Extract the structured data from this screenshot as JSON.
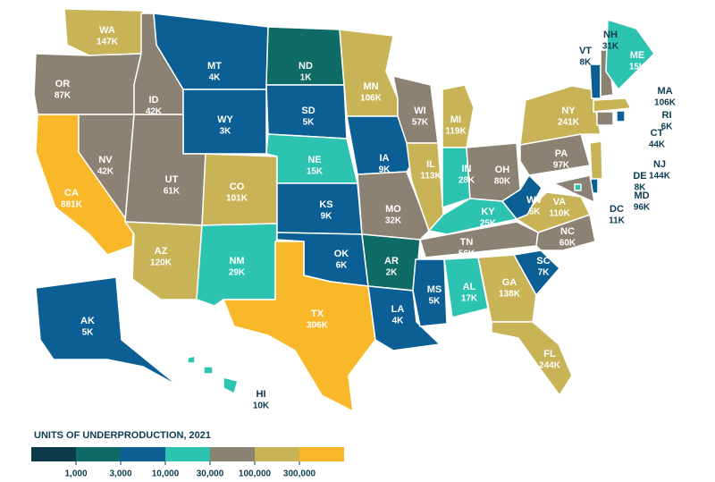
{
  "chart_data": {
    "type": "choropleth",
    "title": "UNITS OF UNDERPRODUCTION, 2021",
    "thresholds": [
      {
        "value": 1000,
        "label": "1,000"
      },
      {
        "value": 3000,
        "label": "3,000"
      },
      {
        "value": 10000,
        "label": "10,000"
      },
      {
        "value": 30000,
        "label": "30,000"
      },
      {
        "value": 100000,
        "label": "100,000"
      },
      {
        "value": 300000,
        "label": "300,000"
      }
    ],
    "colors": [
      "#0b3a4a",
      "#0e6b66",
      "#0b5f95",
      "#2cc4b0",
      "#8c8274",
      "#c8b457",
      "#f8b82a"
    ],
    "states": [
      {
        "name": "WA",
        "value": 147000,
        "value_label": "147K"
      },
      {
        "name": "OR",
        "value": 87000,
        "value_label": "87K"
      },
      {
        "name": "CA",
        "value": 881000,
        "value_label": "881K"
      },
      {
        "name": "NV",
        "value": 42000,
        "value_label": "42K"
      },
      {
        "name": "ID",
        "value": 42000,
        "value_label": "42K"
      },
      {
        "name": "MT",
        "value": 4000,
        "value_label": "4K"
      },
      {
        "name": "WY",
        "value": 3000,
        "value_label": "3K"
      },
      {
        "name": "UT",
        "value": 61000,
        "value_label": "61K"
      },
      {
        "name": "AZ",
        "value": 120000,
        "value_label": "120K"
      },
      {
        "name": "CO",
        "value": 101000,
        "value_label": "101K"
      },
      {
        "name": "NM",
        "value": 29000,
        "value_label": "29K"
      },
      {
        "name": "ND",
        "value": 1000,
        "value_label": "1K"
      },
      {
        "name": "SD",
        "value": 5000,
        "value_label": "5K"
      },
      {
        "name": "NE",
        "value": 15000,
        "value_label": "15K"
      },
      {
        "name": "KS",
        "value": 9000,
        "value_label": "9K"
      },
      {
        "name": "OK",
        "value": 6000,
        "value_label": "6K"
      },
      {
        "name": "TX",
        "value": 306000,
        "value_label": "306K"
      },
      {
        "name": "MN",
        "value": 106000,
        "value_label": "106K"
      },
      {
        "name": "IA",
        "value": 9000,
        "value_label": "9K"
      },
      {
        "name": "MO",
        "value": 32000,
        "value_label": "32K"
      },
      {
        "name": "AR",
        "value": 2000,
        "value_label": "2K"
      },
      {
        "name": "LA",
        "value": 4000,
        "value_label": "4K"
      },
      {
        "name": "WI",
        "value": 57000,
        "value_label": "57K"
      },
      {
        "name": "IL",
        "value": 113000,
        "value_label": "113K"
      },
      {
        "name": "MI",
        "value": 119000,
        "value_label": "119K"
      },
      {
        "name": "IN",
        "value": 28000,
        "value_label": "28K"
      },
      {
        "name": "OH",
        "value": 80000,
        "value_label": "80K"
      },
      {
        "name": "KY",
        "value": 25000,
        "value_label": "25K"
      },
      {
        "name": "TN",
        "value": 56000,
        "value_label": "56K"
      },
      {
        "name": "MS",
        "value": 5000,
        "value_label": "5K"
      },
      {
        "name": "AL",
        "value": 17000,
        "value_label": "17K"
      },
      {
        "name": "GA",
        "value": 138000,
        "value_label": "138K"
      },
      {
        "name": "FL",
        "value": 244000,
        "value_label": "244K"
      },
      {
        "name": "SC",
        "value": 7000,
        "value_label": "7K"
      },
      {
        "name": "NC",
        "value": 60000,
        "value_label": "60K"
      },
      {
        "name": "VA",
        "value": 110000,
        "value_label": "110K"
      },
      {
        "name": "WV",
        "value": 5000,
        "value_label": "5K"
      },
      {
        "name": "PA",
        "value": 97000,
        "value_label": "97K"
      },
      {
        "name": "NY",
        "value": 241000,
        "value_label": "241K"
      },
      {
        "name": "VT",
        "value": 8000,
        "value_label": "8K"
      },
      {
        "name": "NH",
        "value": 31000,
        "value_label": "31K"
      },
      {
        "name": "ME",
        "value": 15000,
        "value_label": "15K"
      },
      {
        "name": "MA",
        "value": 106000,
        "value_label": "106K"
      },
      {
        "name": "CT",
        "value": 44000,
        "value_label": "44K"
      },
      {
        "name": "RI",
        "value": 6000,
        "value_label": "6K"
      },
      {
        "name": "NJ",
        "value": 144000,
        "value_label": "144K"
      },
      {
        "name": "DE",
        "value": 8000,
        "value_label": "8K"
      },
      {
        "name": "MD",
        "value": 96000,
        "value_label": "96K"
      },
      {
        "name": "DC",
        "value": 11000,
        "value_label": "11K"
      },
      {
        "name": "AK",
        "value": 5000,
        "value_label": "5K"
      },
      {
        "name": "HI",
        "value": 10000,
        "value_label": "10K"
      }
    ]
  }
}
